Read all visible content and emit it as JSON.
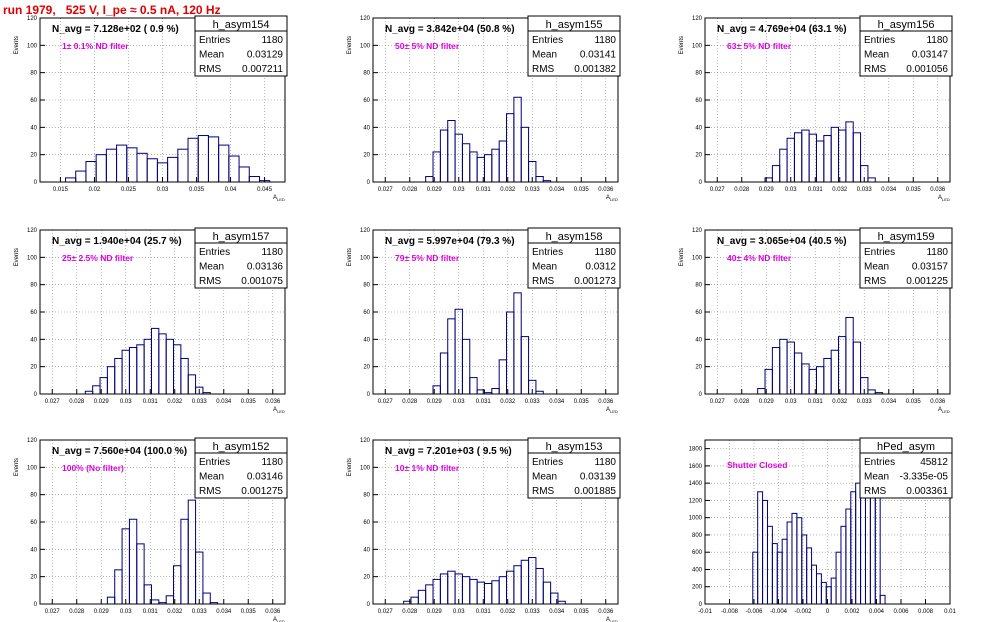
{
  "title": "run 1979,   525 V, I_pe ≈ 0.5 nA, 120 Hz",
  "colors": {
    "title": "#e00000",
    "hist": "#00007a",
    "annotation": "#dd00dd",
    "frame": "#000000",
    "grid": "#888888"
  },
  "chart_data": [
    {
      "type": "histogram",
      "name": "h_asym154",
      "ylabel": "Events",
      "xlabel": "A_LED",
      "ylim": [
        0,
        120
      ],
      "xlim": [
        0.012,
        0.048
      ],
      "xticks": [
        0.015,
        0.02,
        0.025,
        0.03,
        0.035,
        0.04,
        0.045
      ],
      "xtick_labels": [
        "0.015",
        "0.02",
        "0.025",
        "0.03",
        "0.035",
        "0.04",
        "0.045"
      ],
      "yticks": [
        0,
        20,
        40,
        60,
        80,
        100,
        120
      ],
      "header": "N_avg = 7.128e+02 ( 0.9 %)",
      "annotation": "1± 0.1% ND filter",
      "stats": {
        "entries": "1180",
        "mean": "0.03129",
        "rms": "0.007211"
      },
      "x": [
        0.0165,
        0.018,
        0.0195,
        0.021,
        0.0225,
        0.024,
        0.0255,
        0.027,
        0.0285,
        0.03,
        0.0315,
        0.033,
        0.0345,
        0.036,
        0.0375,
        0.039,
        0.0405,
        0.042,
        0.0435,
        0.045
      ],
      "values": [
        3,
        8,
        15,
        20,
        24,
        27,
        25,
        21,
        17,
        14,
        18,
        24,
        32,
        34,
        33,
        27,
        19,
        11,
        4,
        1
      ]
    },
    {
      "type": "histogram",
      "name": "h_asym155",
      "ylabel": "Events",
      "xlabel": "A_LED",
      "ylim": [
        0,
        120
      ],
      "xlim": [
        0.0265,
        0.0365
      ],
      "xticks": [
        0.027,
        0.028,
        0.029,
        0.03,
        0.031,
        0.032,
        0.033,
        0.034,
        0.035,
        0.036
      ],
      "xtick_labels": [
        "0.027",
        "0.028",
        "0.029",
        "0.03",
        "0.031",
        "0.032",
        "0.033",
        "0.034",
        "0.035",
        "0.036"
      ],
      "yticks": [
        0,
        20,
        40,
        60,
        80,
        100,
        120
      ],
      "header": "N_avg = 3.842e+04 (50.8 %)",
      "annotation": "50± 5% ND filter",
      "stats": {
        "entries": "1180",
        "mean": "0.03141",
        "rms": "0.001382"
      },
      "x": [
        0.0288,
        0.0291,
        0.0294,
        0.0297,
        0.03,
        0.0303,
        0.0306,
        0.0309,
        0.0312,
        0.0315,
        0.0318,
        0.0321,
        0.0324,
        0.0327,
        0.033,
        0.0333,
        0.0336
      ],
      "values": [
        4,
        22,
        38,
        45,
        35,
        28,
        22,
        18,
        20,
        24,
        30,
        50,
        62,
        40,
        15,
        4,
        1
      ]
    },
    {
      "type": "histogram",
      "name": "h_asym156",
      "ylabel": "Events",
      "xlabel": "A_LED",
      "ylim": [
        0,
        120
      ],
      "xlim": [
        0.0265,
        0.0365
      ],
      "xticks": [
        0.027,
        0.028,
        0.029,
        0.03,
        0.031,
        0.032,
        0.033,
        0.034,
        0.035,
        0.036
      ],
      "xtick_labels": [
        "0.027",
        "0.028",
        "0.029",
        "0.03",
        "0.031",
        "0.032",
        "0.033",
        "0.034",
        "0.035",
        "0.036"
      ],
      "yticks": [
        0,
        20,
        40,
        60,
        80,
        100,
        120
      ],
      "header": "N_avg = 4.769e+04 (63.1 %)",
      "annotation": "63± 5% ND filter",
      "stats": {
        "entries": "1180",
        "mean": "0.03147",
        "rms": "0.001056"
      },
      "x": [
        0.0291,
        0.0294,
        0.0297,
        0.03,
        0.0303,
        0.0306,
        0.0309,
        0.0312,
        0.0315,
        0.0318,
        0.0321,
        0.0324,
        0.0327,
        0.033,
        0.0333
      ],
      "values": [
        3,
        12,
        24,
        32,
        36,
        38,
        35,
        30,
        34,
        40,
        38,
        44,
        36,
        12,
        3
      ]
    },
    {
      "type": "histogram",
      "name": "h_asym157",
      "ylabel": "Events",
      "xlabel": "A_LED",
      "ylim": [
        0,
        120
      ],
      "xlim": [
        0.0265,
        0.0365
      ],
      "xticks": [
        0.027,
        0.028,
        0.029,
        0.03,
        0.031,
        0.032,
        0.033,
        0.034,
        0.035,
        0.036
      ],
      "xtick_labels": [
        "0.027",
        "0.028",
        "0.029",
        "0.03",
        "0.031",
        "0.032",
        "0.033",
        "0.034",
        "0.035",
        "0.036"
      ],
      "yticks": [
        0,
        20,
        40,
        60,
        80,
        100,
        120
      ],
      "header": "N_avg = 1.940e+04 (25.7 %)",
      "annotation": "25± 2.5% ND filter",
      "stats": {
        "entries": "1180",
        "mean": "0.03136",
        "rms": "0.001075"
      },
      "x": [
        0.0285,
        0.0288,
        0.0291,
        0.0294,
        0.0297,
        0.03,
        0.0303,
        0.0306,
        0.0309,
        0.0312,
        0.0315,
        0.0318,
        0.0321,
        0.0324,
        0.0327,
        0.033,
        0.0333
      ],
      "values": [
        2,
        6,
        12,
        20,
        26,
        32,
        34,
        36,
        40,
        48,
        44,
        40,
        36,
        26,
        14,
        5,
        1
      ]
    },
    {
      "type": "histogram",
      "name": "h_asym158",
      "ylabel": "Events",
      "xlabel": "A_LED",
      "ylim": [
        0,
        120
      ],
      "xlim": [
        0.0265,
        0.0365
      ],
      "xticks": [
        0.027,
        0.028,
        0.029,
        0.03,
        0.031,
        0.032,
        0.033,
        0.034,
        0.035,
        0.036
      ],
      "xtick_labels": [
        "0.027",
        "0.028",
        "0.029",
        "0.03",
        "0.031",
        "0.032",
        "0.033",
        "0.034",
        "0.035",
        "0.036"
      ],
      "yticks": [
        0,
        20,
        40,
        60,
        80,
        100,
        120
      ],
      "header": "N_avg = 5.997e+04 (79.3 %)",
      "annotation": "79± 5% ND filter",
      "stats": {
        "entries": "1180",
        "mean": "0.0312",
        "rms": "0.001273"
      },
      "x": [
        0.0291,
        0.0294,
        0.0297,
        0.03,
        0.0303,
        0.0306,
        0.0309,
        0.0312,
        0.0315,
        0.0318,
        0.0321,
        0.0324,
        0.0327,
        0.033,
        0.0333
      ],
      "values": [
        6,
        30,
        55,
        62,
        40,
        12,
        3,
        1,
        4,
        25,
        60,
        74,
        42,
        10,
        2
      ]
    },
    {
      "type": "histogram",
      "name": "h_asym159",
      "ylabel": "Events",
      "xlabel": "A_LED",
      "ylim": [
        0,
        120
      ],
      "xlim": [
        0.0265,
        0.0365
      ],
      "xticks": [
        0.027,
        0.028,
        0.029,
        0.03,
        0.031,
        0.032,
        0.033,
        0.034,
        0.035,
        0.036
      ],
      "xtick_labels": [
        "0.027",
        "0.028",
        "0.029",
        "0.03",
        "0.031",
        "0.032",
        "0.033",
        "0.034",
        "0.035",
        "0.036"
      ],
      "yticks": [
        0,
        20,
        40,
        60,
        80,
        100,
        120
      ],
      "header": "N_avg = 3.065e+04 (40.5 %)",
      "annotation": "40± 4% ND filter",
      "stats": {
        "entries": "1180",
        "mean": "0.03157",
        "rms": "0.001225"
      },
      "x": [
        0.0288,
        0.0291,
        0.0294,
        0.0297,
        0.03,
        0.0303,
        0.0306,
        0.0309,
        0.0312,
        0.0315,
        0.0318,
        0.0321,
        0.0324,
        0.0327,
        0.033,
        0.0333,
        0.0336
      ],
      "values": [
        4,
        18,
        34,
        40,
        38,
        30,
        22,
        18,
        20,
        26,
        32,
        42,
        56,
        38,
        12,
        3,
        1
      ]
    },
    {
      "type": "histogram",
      "name": "h_asym152",
      "ylabel": "Events",
      "xlabel": "A_LED",
      "ylim": [
        0,
        120
      ],
      "xlim": [
        0.0265,
        0.0365
      ],
      "xticks": [
        0.027,
        0.028,
        0.029,
        0.03,
        0.031,
        0.032,
        0.033,
        0.034,
        0.035,
        0.036
      ],
      "xtick_labels": [
        "0.027",
        "0.028",
        "0.029",
        "0.03",
        "0.031",
        "0.032",
        "0.033",
        "0.034",
        "0.035",
        "0.036"
      ],
      "yticks": [
        0,
        20,
        40,
        60,
        80,
        100,
        120
      ],
      "header": "N_avg = 7.560e+04 (100.0 %)",
      "annotation": "100% (No filter)",
      "stats": {
        "entries": "1180",
        "mean": "0.03146",
        "rms": "0.001275"
      },
      "x": [
        0.0294,
        0.0297,
        0.03,
        0.0303,
        0.0306,
        0.0309,
        0.0312,
        0.0315,
        0.0318,
        0.0321,
        0.0324,
        0.0327,
        0.033,
        0.0333,
        0.0336
      ],
      "values": [
        5,
        25,
        55,
        62,
        44,
        14,
        3,
        1,
        6,
        28,
        62,
        76,
        38,
        8,
        1
      ]
    },
    {
      "type": "histogram",
      "name": "h_asym153",
      "ylabel": "Events",
      "xlabel": "A_LED",
      "ylim": [
        0,
        120
      ],
      "xlim": [
        0.0265,
        0.0365
      ],
      "xticks": [
        0.027,
        0.028,
        0.029,
        0.03,
        0.031,
        0.032,
        0.033,
        0.034,
        0.035,
        0.036
      ],
      "xtick_labels": [
        "0.027",
        "0.028",
        "0.029",
        "0.03",
        "0.031",
        "0.032",
        "0.033",
        "0.034",
        "0.035",
        "0.036"
      ],
      "yticks": [
        0,
        20,
        40,
        60,
        80,
        100,
        120
      ],
      "header": "N_avg = 7.201e+03 ( 9.5 %)",
      "annotation": "10± 1% ND filter",
      "stats": {
        "entries": "1180",
        "mean": "0.03139",
        "rms": "0.001885"
      },
      "x": [
        0.0279,
        0.0282,
        0.0285,
        0.0288,
        0.0291,
        0.0294,
        0.0297,
        0.03,
        0.0303,
        0.0306,
        0.0309,
        0.0312,
        0.0315,
        0.0318,
        0.0321,
        0.0324,
        0.0327,
        0.033,
        0.0333,
        0.0336,
        0.0339,
        0.0342
      ],
      "values": [
        2,
        5,
        10,
        14,
        18,
        22,
        24,
        22,
        20,
        18,
        16,
        15,
        17,
        20,
        24,
        28,
        32,
        34,
        26,
        16,
        8,
        2
      ]
    },
    {
      "type": "histogram",
      "name": "hPed_asym",
      "ylabel": "",
      "xlabel": "",
      "ylim": [
        0,
        1900
      ],
      "xlim": [
        -0.01,
        0.01
      ],
      "xticks": [
        -0.01,
        -0.008,
        -0.006,
        -0.004,
        -0.002,
        0,
        0.002,
        0.004,
        0.006,
        0.008,
        0.01
      ],
      "xtick_labels": [
        "-0.01",
        "-0.008",
        "-0.006",
        "-0.004",
        "-0.002",
        "0",
        "0.002",
        "0.004",
        "0.006",
        "0.008",
        "0.01"
      ],
      "yticks": [
        0,
        200,
        400,
        600,
        800,
        1000,
        1200,
        1400,
        1600,
        1800
      ],
      "header": "",
      "annotation": "Shutter Closed",
      "stats": {
        "entries": "45812",
        "mean": "-3.335e-05",
        "rms": "0.003361"
      },
      "x": [
        -0.0059,
        -0.0055,
        -0.0051,
        -0.0047,
        -0.0043,
        -0.0039,
        -0.0035,
        -0.0031,
        -0.0027,
        -0.0023,
        -0.0019,
        -0.0015,
        -0.0011,
        -0.0007,
        -0.0003,
        0.0001,
        0.0005,
        0.0009,
        0.0013,
        0.0017,
        0.0021,
        0.0025,
        0.0029,
        0.0033,
        0.0037,
        0.0041,
        0.0045
      ],
      "values": [
        600,
        1300,
        1200,
        900,
        700,
        600,
        750,
        950,
        1050,
        1000,
        800,
        650,
        450,
        350,
        250,
        200,
        300,
        600,
        900,
        1100,
        1300,
        1400,
        1500,
        1650,
        1850,
        1700,
        100
      ]
    }
  ]
}
